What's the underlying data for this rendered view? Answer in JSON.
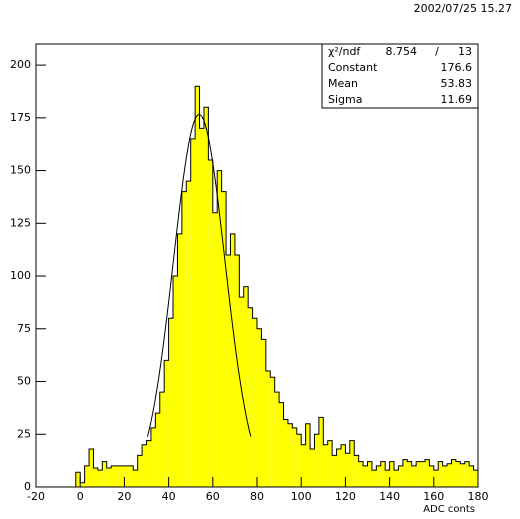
{
  "chart_data": {
    "type": "histogram",
    "timestamp": "2002/07/25  15.27",
    "x_label": "ADC conts",
    "color": "#ffff00",
    "bins": [
      -2,
      0,
      2,
      4,
      6,
      8,
      10,
      12,
      14,
      16,
      18,
      20,
      22,
      24,
      26,
      28,
      30,
      32,
      34,
      36,
      38,
      40,
      42,
      44,
      46,
      48,
      50,
      52,
      54,
      56,
      58,
      60,
      62,
      64,
      66,
      68,
      70,
      72,
      74,
      76,
      78,
      80,
      82,
      84,
      86,
      88,
      90,
      92,
      94,
      96,
      98,
      100,
      102,
      104,
      106,
      108,
      110,
      112,
      114,
      116,
      118,
      120,
      122,
      124,
      126,
      128,
      130,
      132,
      134,
      136,
      138,
      140,
      142,
      144,
      146,
      148,
      150,
      152,
      154,
      156,
      158,
      160,
      162,
      164,
      166,
      168,
      170,
      172,
      174,
      176,
      178,
      180
    ],
    "values": [
      7,
      2,
      10,
      18,
      9,
      8,
      12,
      9,
      10,
      10,
      10,
      10,
      10,
      8,
      15,
      20,
      22,
      28,
      35,
      45,
      60,
      80,
      100,
      120,
      140,
      145,
      165,
      190,
      170,
      180,
      155,
      130,
      150,
      140,
      110,
      120,
      110,
      90,
      95,
      85,
      80,
      75,
      70,
      55,
      52,
      45,
      40,
      32,
      30,
      28,
      25,
      20,
      30,
      18,
      25,
      33,
      20,
      22,
      15,
      18,
      20,
      16,
      22,
      15,
      12,
      10,
      12,
      8,
      10,
      12,
      8,
      12,
      8,
      10,
      13,
      12,
      10,
      12,
      12,
      13,
      10,
      8,
      12,
      10,
      11,
      13,
      12,
      11,
      12,
      10,
      8
    ],
    "xlim": [
      -20,
      180
    ],
    "xticks": [
      -20,
      0,
      20,
      40,
      60,
      80,
      100,
      120,
      140,
      160,
      180
    ],
    "ylim": [
      0,
      210
    ],
    "yticks": [
      0,
      25,
      50,
      75,
      100,
      125,
      150,
      175,
      200
    ],
    "stats": {
      "chi2_label": "χ²/ndf",
      "chi2": 8.754,
      "ndf_sep": "/",
      "ndf": 13,
      "rows": [
        {
          "label": "Constant",
          "value": 176.6
        },
        {
          "label": "Mean",
          "value": 53.83
        },
        {
          "label": "Sigma",
          "value": 11.69
        }
      ]
    }
  }
}
